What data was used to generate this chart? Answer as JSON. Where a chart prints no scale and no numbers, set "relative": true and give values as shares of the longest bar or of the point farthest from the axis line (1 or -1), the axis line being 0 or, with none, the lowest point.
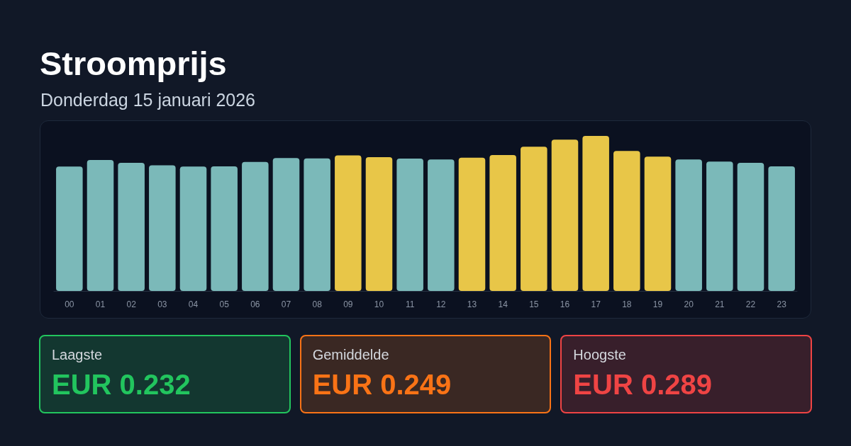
{
  "chart_data": [
    {
      "type": "bar",
      "title": "Stroomprijs",
      "subtitle": "Donderdag 15 januari 2026",
      "categories": [
        "00",
        "01",
        "02",
        "03",
        "04",
        "05",
        "06",
        "07",
        "08",
        "09",
        "10",
        "11",
        "12",
        "13",
        "14",
        "15",
        "16",
        "17",
        "18",
        "19",
        "20",
        "21",
        "22",
        "23"
      ],
      "values": [
        0.802,
        0.845,
        0.826,
        0.811,
        0.802,
        0.804,
        0.832,
        0.857,
        0.855,
        0.874,
        0.863,
        0.854,
        0.848,
        0.86,
        0.877,
        0.93,
        0.976,
        1,
        0.903,
        0.866,
        0.848,
        0.834,
        0.826,
        0.804
      ],
      "colors": [
        "#7bb9b9",
        "#7bb9b9",
        "#7bb9b9",
        "#7bb9b9",
        "#7bb9b9",
        "#7bb9b9",
        "#7bb9b9",
        "#7bb9b9",
        "#7bb9b9",
        "#e8c648",
        "#e8c648",
        "#7bb9b9",
        "#7bb9b9",
        "#e8c648",
        "#e8c648",
        "#e8c648",
        "#e8c648",
        "#e8c648",
        "#e8c648",
        "#e8c648",
        "#7bb9b9",
        "#7bb9b9",
        "#7bb9b9",
        "#7bb9b9"
      ],
      "relative": true
    },
    {
      "type": "other",
      "categories": [
        "Laagste",
        "Gemiddelde",
        "Hoogste"
      ],
      "value_labels": [
        "EUR 0.232",
        "EUR 0.249",
        "EUR 0.289"
      ],
      "colors": [
        "#22c55e",
        "#f97316",
        "#ef4444"
      ]
    }
  ]
}
